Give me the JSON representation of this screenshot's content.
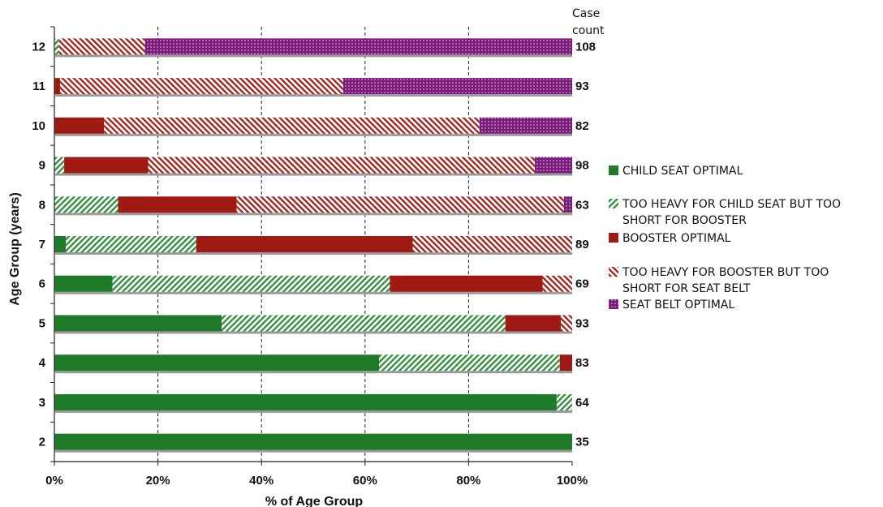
{
  "chart_data": {
    "type": "bar",
    "orientation": "horizontal",
    "stacked": true,
    "normalized": true,
    "title": "",
    "xlabel": "% of Age Group",
    "ylabel": "Age Group (years)",
    "xlim": [
      0,
      100
    ],
    "x_ticks": [
      "0%",
      "20%",
      "40%",
      "60%",
      "80%",
      "100%"
    ],
    "grid": "vertical dashed at 20% intervals",
    "legend_position": "right",
    "categories": [
      "2",
      "3",
      "4",
      "5",
      "6",
      "7",
      "8",
      "9",
      "10",
      "11",
      "12"
    ],
    "case_count_header": [
      "Case",
      "count"
    ],
    "case_counts": [
      "35",
      "64",
      "83",
      "93",
      "69",
      "89",
      "63",
      "98",
      "82",
      "93",
      "108"
    ],
    "series": [
      {
        "name": "CHILD SEAT OPTIMAL",
        "legend_lines": [
          "CHILD SEAT OPTIMAL"
        ],
        "color": "#1f7a2a",
        "pattern": "solid",
        "values": [
          100,
          97,
          62.7,
          32.3,
          11.2,
          2.2,
          0,
          0,
          0,
          0,
          0
        ]
      },
      {
        "name": "TOO HEAVY FOR CHILD SEAT BUT TOO SHORT FOR BOOSTER",
        "legend_lines": [
          "TOO HEAVY FOR CHILD SEAT BUT TOO",
          "SHORT FOR BOOSTER"
        ],
        "color": "#2e8b3a",
        "pattern": "hatch",
        "values": [
          0,
          3,
          34.9,
          54.8,
          53.6,
          25.2,
          12.3,
          1.9,
          0,
          0,
          0.9
        ]
      },
      {
        "name": "BOOSTER OPTIMAL",
        "legend_lines": [
          "BOOSTER OPTIMAL"
        ],
        "color": "#9e1a12",
        "pattern": "solid",
        "values": [
          0,
          0,
          2.4,
          10.7,
          29.5,
          41.8,
          22.9,
          16.2,
          9.6,
          1.1,
          0
        ]
      },
      {
        "name": "TOO HEAVY FOR BOOSTER BUT TOO SHORT FOR SEAT BELT",
        "legend_lines": [
          "TOO HEAVY FOR BOOSTER BUT TOO",
          "SHORT FOR SEAT BELT"
        ],
        "color": "#a01e18",
        "pattern": "hatch",
        "values": [
          0,
          0,
          0,
          2.2,
          5.7,
          30.8,
          63.2,
          74.7,
          72.5,
          54.7,
          16.6
        ]
      },
      {
        "name": "SEAT BELT OPTIMAL",
        "legend_lines": [
          "SEAT BELT OPTIMAL"
        ],
        "color": "#7a1a7a",
        "pattern": "dots",
        "values": [
          0,
          0,
          0,
          0,
          0,
          0,
          1.6,
          7.2,
          17.9,
          44.2,
          82.5
        ]
      }
    ]
  }
}
